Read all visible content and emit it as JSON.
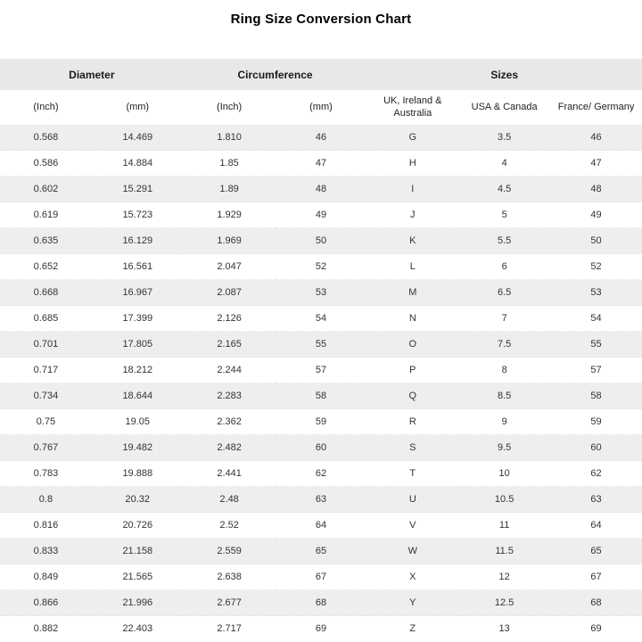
{
  "page": {
    "title": "Ring Size Conversion Chart"
  },
  "table": {
    "group_headers": [
      {
        "label": "Diameter",
        "colspan": 2
      },
      {
        "label": "Circumference",
        "colspan": 2
      },
      {
        "label": "Sizes",
        "colspan": 3
      }
    ],
    "column_headers": [
      "(Inch)",
      "(mm)",
      "(Inch)",
      "(mm)",
      "UK, Ireland & Australia",
      "USA & Canada",
      "France/ Germany"
    ]
  },
  "colors": {
    "stripe_gray": "#eeeeee",
    "header_band_gray": "#e8e8e8",
    "text": "#333333",
    "title_text": "#000000"
  },
  "chart_data": {
    "type": "table",
    "title": "Ring Size Conversion Chart",
    "columns": [
      "Diameter (Inch)",
      "Diameter (mm)",
      "Circumference (Inch)",
      "Circumference (mm)",
      "UK, Ireland & Australia",
      "USA & Canada",
      "France/ Germany"
    ],
    "rows": [
      [
        "0.568",
        "14.469",
        "1.810",
        "46",
        "G",
        "3.5",
        "46"
      ],
      [
        "0.586",
        "14.884",
        "1.85",
        "47",
        "H",
        "4",
        "47"
      ],
      [
        "0.602",
        "15.291",
        "1.89",
        "48",
        "I",
        "4.5",
        "48"
      ],
      [
        "0.619",
        "15.723",
        "1.929",
        "49",
        "J",
        "5",
        "49"
      ],
      [
        "0.635",
        "16.129",
        "1.969",
        "50",
        "K",
        "5.5",
        "50"
      ],
      [
        "0.652",
        "16.561",
        "2.047",
        "52",
        "L",
        "6",
        "52"
      ],
      [
        "0.668",
        "16.967",
        "2.087",
        "53",
        "M",
        "6.5",
        "53"
      ],
      [
        "0.685",
        "17.399",
        "2.126",
        "54",
        "N",
        "7",
        "54"
      ],
      [
        "0.701",
        "17.805",
        "2.165",
        "55",
        "O",
        "7.5",
        "55"
      ],
      [
        "0.717",
        "18.212",
        "2.244",
        "57",
        "P",
        "8",
        "57"
      ],
      [
        "0.734",
        "18.644",
        "2.283",
        "58",
        "Q",
        "8.5",
        "58"
      ],
      [
        "0.75",
        "19.05",
        "2.362",
        "59",
        "R",
        "9",
        "59"
      ],
      [
        "0.767",
        "19.482",
        "2.482",
        "60",
        "S",
        "9.5",
        "60"
      ],
      [
        "0.783",
        "19.888",
        "2.441",
        "62",
        "T",
        "10",
        "62"
      ],
      [
        "0.8",
        "20.32",
        "2.48",
        "63",
        "U",
        "10.5",
        "63"
      ],
      [
        "0.816",
        "20.726",
        "2.52",
        "64",
        "V",
        "11",
        "64"
      ],
      [
        "0.833",
        "21.158",
        "2.559",
        "65",
        "W",
        "11.5",
        "65"
      ],
      [
        "0.849",
        "21.565",
        "2.638",
        "67",
        "X",
        "12",
        "67"
      ],
      [
        "0.866",
        "21.996",
        "2.677",
        "68",
        "Y",
        "12.5",
        "68"
      ],
      [
        "0.882",
        "22.403",
        "2.717",
        "69",
        "Z",
        "13",
        "69"
      ]
    ]
  }
}
